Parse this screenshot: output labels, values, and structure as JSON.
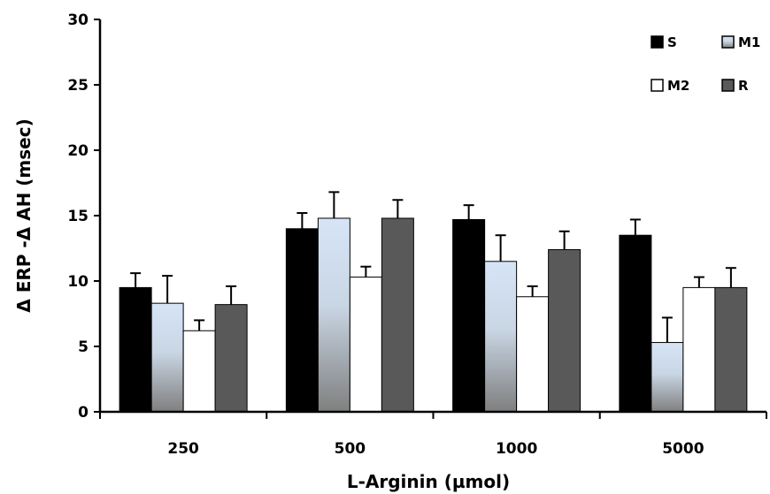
{
  "chart_data": {
    "type": "bar",
    "title": "",
    "xlabel": "L-Arginin (µmol)",
    "ylabel": "Δ ERP -Δ AH (msec)",
    "categories": [
      "250",
      "500",
      "1000",
      "5000"
    ],
    "ylim": [
      0,
      30
    ],
    "yticks": [
      "0",
      "5",
      "10",
      "15",
      "20",
      "25",
      "30"
    ],
    "grid": false,
    "legend_position": "top-right",
    "series": [
      {
        "name": "S",
        "values": [
          9.5,
          14.0,
          14.7,
          13.5
        ],
        "errors": [
          1.1,
          1.2,
          1.1,
          1.2
        ],
        "fill": "#000000"
      },
      {
        "name": "M1",
        "values": [
          8.3,
          14.8,
          11.5,
          5.3
        ],
        "errors": [
          2.1,
          2.0,
          2.0,
          1.9
        ],
        "fill": "gradient-light-blue"
      },
      {
        "name": "M2",
        "values": [
          6.2,
          10.3,
          8.8,
          9.5
        ],
        "errors": [
          0.8,
          0.8,
          0.8,
          0.8
        ],
        "fill": "#ffffff"
      },
      {
        "name": "R",
        "values": [
          8.2,
          14.8,
          12.4,
          9.5
        ],
        "errors": [
          1.4,
          1.4,
          1.4,
          1.5
        ],
        "fill": "#595959"
      }
    ],
    "colors": {
      "s": "#000000",
      "m1_top": "#d6e4f7",
      "m1_bottom": "#7f7f7f",
      "m2": "#ffffff",
      "r": "#595959",
      "axis": "#000000"
    }
  }
}
